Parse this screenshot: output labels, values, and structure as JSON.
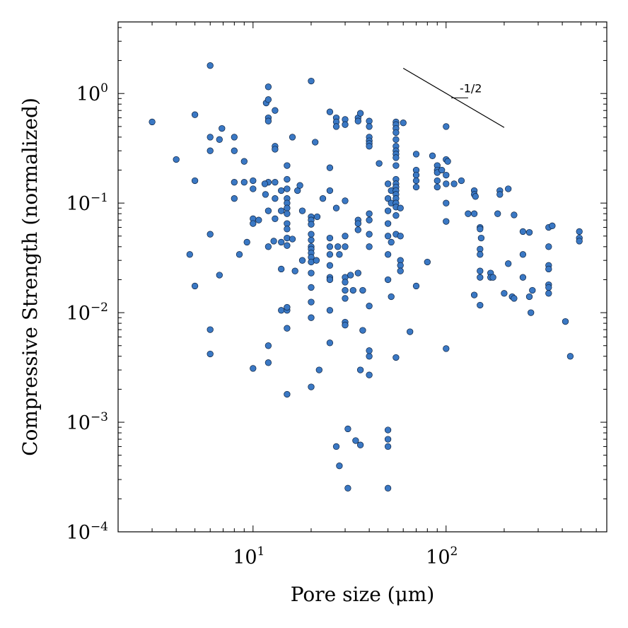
{
  "chart_data": {
    "type": "scatter",
    "title": "",
    "xlabel": "Pore size (μm)",
    "ylabel": "Compressive Strength (normalized)",
    "xscale": "log",
    "yscale": "log",
    "xlim": [
      2.0,
      680
    ],
    "ylim": [
      0.0001,
      4.5
    ],
    "x_ticks": [
      {
        "base": "10",
        "exp": "1",
        "value": 10
      },
      {
        "base": "10",
        "exp": "2",
        "value": 100
      }
    ],
    "y_ticks": [
      {
        "base": "10",
        "exp": "0",
        "value": 1
      },
      {
        "base": "10",
        "exp": "−1",
        "value": 0.1
      },
      {
        "base": "10",
        "exp": "−2",
        "value": 0.01
      },
      {
        "base": "10",
        "exp": "−3",
        "value": 0.001
      },
      {
        "base": "10",
        "exp": "−4",
        "value": 0.0001
      }
    ],
    "grid": false,
    "legend": "none",
    "marker_color": "#3a78c4",
    "slope_annotation": {
      "label": "-1/2",
      "x": [
        60,
        200
      ],
      "y": [
        1.7,
        0.49
      ]
    },
    "points": [
      [
        3,
        0.55
      ],
      [
        4,
        0.25
      ],
      [
        4.7,
        0.034
      ],
      [
        5,
        0.64
      ],
      [
        5,
        0.16
      ],
      [
        5,
        0.0175
      ],
      [
        6,
        1.8
      ],
      [
        6,
        0.4
      ],
      [
        6,
        0.3
      ],
      [
        6,
        0.052
      ],
      [
        6,
        0.007
      ],
      [
        6,
        0.0042
      ],
      [
        6.7,
        0.38
      ],
      [
        6.9,
        0.48
      ],
      [
        6.7,
        0.022
      ],
      [
        8,
        0.4
      ],
      [
        8,
        0.3
      ],
      [
        8,
        0.155
      ],
      [
        8,
        0.11
      ],
      [
        8.5,
        0.034
      ],
      [
        9,
        0.155
      ],
      [
        9,
        0.24
      ],
      [
        9.3,
        0.044
      ],
      [
        10,
        0.16
      ],
      [
        10,
        0.135
      ],
      [
        10,
        0.072
      ],
      [
        10,
        0.065
      ],
      [
        10,
        0.0031
      ],
      [
        10.7,
        0.07
      ],
      [
        12,
        1.15
      ],
      [
        11.7,
        0.82
      ],
      [
        12,
        0.88
      ],
      [
        12,
        0.6
      ],
      [
        12,
        0.56
      ],
      [
        12,
        0.155
      ],
      [
        11.5,
        0.15
      ],
      [
        11.6,
        0.12
      ],
      [
        12,
        0.085
      ],
      [
        12,
        0.04
      ],
      [
        12,
        0.005
      ],
      [
        12,
        0.0035
      ],
      [
        13,
        0.7
      ],
      [
        13,
        0.33
      ],
      [
        13,
        0.31
      ],
      [
        13,
        0.155
      ],
      [
        13,
        0.11
      ],
      [
        13,
        0.072
      ],
      [
        12.8,
        0.045
      ],
      [
        14,
        0.13
      ],
      [
        14,
        0.085
      ],
      [
        14,
        0.044
      ],
      [
        14,
        0.025
      ],
      [
        14,
        0.0105
      ],
      [
        15,
        0.22
      ],
      [
        15,
        0.165
      ],
      [
        15,
        0.135
      ],
      [
        15,
        0.11
      ],
      [
        15,
        0.1
      ],
      [
        15,
        0.09
      ],
      [
        15,
        0.08
      ],
      [
        15,
        0.065
      ],
      [
        15,
        0.058
      ],
      [
        15,
        0.048
      ],
      [
        15,
        0.041
      ],
      [
        15,
        0.0105
      ],
      [
        15,
        0.0112
      ],
      [
        15,
        0.0072
      ],
      [
        15,
        0.0018
      ],
      [
        16,
        0.4
      ],
      [
        16,
        0.047
      ],
      [
        16.5,
        0.024
      ],
      [
        17,
        0.13
      ],
      [
        17.5,
        0.145
      ],
      [
        18,
        0.085
      ],
      [
        18,
        0.03
      ],
      [
        20,
        1.3
      ],
      [
        21,
        0.36
      ],
      [
        20,
        0.075
      ],
      [
        20,
        0.07
      ],
      [
        20,
        0.064
      ],
      [
        20,
        0.052
      ],
      [
        20,
        0.046
      ],
      [
        20,
        0.04
      ],
      [
        20,
        0.038
      ],
      [
        20,
        0.035
      ],
      [
        20,
        0.032
      ],
      [
        20,
        0.029
      ],
      [
        20,
        0.023
      ],
      [
        20,
        0.017
      ],
      [
        20,
        0.0125
      ],
      [
        20,
        0.009
      ],
      [
        20,
        0.0021
      ],
      [
        21.5,
        0.075
      ],
      [
        21.3,
        0.03
      ],
      [
        22,
        0.003
      ],
      [
        23,
        0.11
      ],
      [
        25,
        0.68
      ],
      [
        25,
        0.21
      ],
      [
        25,
        0.13
      ],
      [
        25,
        0.048
      ],
      [
        25,
        0.04
      ],
      [
        25,
        0.034
      ],
      [
        25,
        0.027
      ],
      [
        25,
        0.021
      ],
      [
        25,
        0.02
      ],
      [
        25,
        0.0105
      ],
      [
        25,
        0.0053
      ],
      [
        27,
        0.6
      ],
      [
        27,
        0.55
      ],
      [
        27,
        0.5
      ],
      [
        27,
        0.09
      ],
      [
        27.5,
        0.04
      ],
      [
        27,
        0.0006
      ],
      [
        28,
        0.0004
      ],
      [
        28,
        0.034
      ],
      [
        30,
        0.58
      ],
      [
        30,
        0.52
      ],
      [
        30,
        0.105
      ],
      [
        30,
        0.05
      ],
      [
        30,
        0.04
      ],
      [
        30,
        0.021
      ],
      [
        30,
        0.019
      ],
      [
        30,
        0.016
      ],
      [
        30,
        0.0135
      ],
      [
        30,
        0.0082
      ],
      [
        30,
        0.0077
      ],
      [
        31,
        0.00087
      ],
      [
        31,
        0.00025
      ],
      [
        32,
        0.022
      ],
      [
        33,
        0.016
      ],
      [
        34,
        0.00068
      ],
      [
        35,
        0.6
      ],
      [
        35,
        0.56
      ],
      [
        35,
        0.07
      ],
      [
        35,
        0.065
      ],
      [
        35,
        0.057
      ],
      [
        35,
        0.023
      ],
      [
        36,
        0.003
      ],
      [
        36,
        0.00062
      ],
      [
        36,
        0.66
      ],
      [
        37,
        0.016
      ],
      [
        37,
        0.0069
      ],
      [
        40,
        0.56
      ],
      [
        40,
        0.5
      ],
      [
        40,
        0.4
      ],
      [
        40,
        0.37
      ],
      [
        40,
        0.35
      ],
      [
        40,
        0.33
      ],
      [
        40,
        0.08
      ],
      [
        40,
        0.07
      ],
      [
        40,
        0.052
      ],
      [
        40,
        0.04
      ],
      [
        40,
        0.0115
      ],
      [
        40,
        0.004
      ],
      [
        40,
        0.0045
      ],
      [
        40,
        0.0027
      ],
      [
        45,
        0.23
      ],
      [
        50,
        0.15
      ],
      [
        50,
        0.11
      ],
      [
        50,
        0.085
      ],
      [
        50,
        0.065
      ],
      [
        50,
        0.05
      ],
      [
        50,
        0.034
      ],
      [
        50,
        0.02
      ],
      [
        50,
        0.00085
      ],
      [
        50,
        0.0007
      ],
      [
        50,
        0.0006
      ],
      [
        50,
        0.00025
      ],
      [
        52,
        0.014
      ],
      [
        52,
        0.044
      ],
      [
        52,
        0.13
      ],
      [
        52,
        0.1
      ],
      [
        55,
        0.55
      ],
      [
        55,
        0.52
      ],
      [
        55,
        0.48
      ],
      [
        55,
        0.44
      ],
      [
        55,
        0.38
      ],
      [
        55,
        0.33
      ],
      [
        55,
        0.3
      ],
      [
        55,
        0.28
      ],
      [
        55,
        0.26
      ],
      [
        55,
        0.22
      ],
      [
        55,
        0.165
      ],
      [
        55,
        0.15
      ],
      [
        55,
        0.14
      ],
      [
        55,
        0.13
      ],
      [
        55,
        0.12
      ],
      [
        55,
        0.11
      ],
      [
        55,
        0.1
      ],
      [
        55,
        0.092
      ],
      [
        55,
        0.077
      ],
      [
        55,
        0.052
      ],
      [
        55,
        0.0039
      ],
      [
        58,
        0.09
      ],
      [
        58,
        0.05
      ],
      [
        58,
        0.03
      ],
      [
        58,
        0.027
      ],
      [
        58,
        0.024
      ],
      [
        60,
        0.54
      ],
      [
        65,
        0.0067
      ],
      [
        70,
        0.28
      ],
      [
        70,
        0.2
      ],
      [
        70,
        0.18
      ],
      [
        70,
        0.16
      ],
      [
        70,
        0.14
      ],
      [
        70,
        0.0175
      ],
      [
        80,
        0.029
      ],
      [
        85,
        0.27
      ],
      [
        90,
        0.22
      ],
      [
        90,
        0.2
      ],
      [
        90,
        0.19
      ],
      [
        90,
        0.16
      ],
      [
        90,
        0.14
      ],
      [
        95,
        0.2
      ],
      [
        100,
        0.5
      ],
      [
        100,
        0.25
      ],
      [
        100,
        0.18
      ],
      [
        100,
        0.15
      ],
      [
        100,
        0.1
      ],
      [
        100,
        0.068
      ],
      [
        100,
        0.0047
      ],
      [
        102,
        0.24
      ],
      [
        110,
        0.15
      ],
      [
        120,
        0.16
      ],
      [
        130,
        0.08
      ],
      [
        140,
        0.13
      ],
      [
        140,
        0.12
      ],
      [
        140,
        0.08
      ],
      [
        140,
        0.0145
      ],
      [
        142,
        0.115
      ],
      [
        150,
        0.06
      ],
      [
        150,
        0.058
      ],
      [
        150,
        0.038
      ],
      [
        150,
        0.034
      ],
      [
        150,
        0.024
      ],
      [
        150,
        0.021
      ],
      [
        150,
        0.0117
      ],
      [
        152,
        0.048
      ],
      [
        170,
        0.023
      ],
      [
        170,
        0.021
      ],
      [
        175,
        0.021
      ],
      [
        185,
        0.08
      ],
      [
        190,
        0.13
      ],
      [
        190,
        0.12
      ],
      [
        200,
        0.015
      ],
      [
        210,
        0.135
      ],
      [
        210,
        0.028
      ],
      [
        220,
        0.014
      ],
      [
        225,
        0.0135
      ],
      [
        225,
        0.078
      ],
      [
        250,
        0.055
      ],
      [
        250,
        0.034
      ],
      [
        250,
        0.021
      ],
      [
        270,
        0.054
      ],
      [
        270,
        0.014
      ],
      [
        280,
        0.016
      ],
      [
        275,
        0.01
      ],
      [
        340,
        0.06
      ],
      [
        340,
        0.04
      ],
      [
        340,
        0.027
      ],
      [
        340,
        0.025
      ],
      [
        340,
        0.018
      ],
      [
        340,
        0.017
      ],
      [
        340,
        0.015
      ],
      [
        355,
        0.062
      ],
      [
        415,
        0.0083
      ],
      [
        440,
        0.004
      ],
      [
        490,
        0.055
      ],
      [
        490,
        0.048
      ],
      [
        490,
        0.045
      ]
    ]
  }
}
